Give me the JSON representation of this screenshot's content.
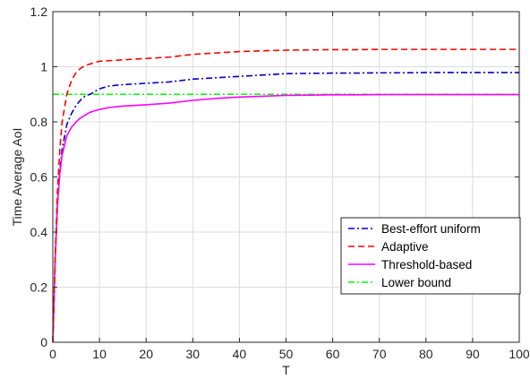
{
  "chart_data": {
    "type": "line",
    "xlabel": "T",
    "ylabel": "Time Average AoI",
    "xlim": [
      0,
      100
    ],
    "ylim": [
      0,
      1.2
    ],
    "xticks": [
      0,
      10,
      20,
      30,
      40,
      50,
      60,
      70,
      80,
      90,
      100
    ],
    "yticks": [
      0,
      0.2,
      0.4,
      0.6,
      0.8,
      1,
      1.2
    ],
    "xtick_labels": [
      "0",
      "10",
      "20",
      "30",
      "40",
      "50",
      "60",
      "70",
      "80",
      "90",
      "100"
    ],
    "ytick_labels": [
      "0",
      "0.2",
      "0.4",
      "0.6",
      "0.8",
      "1",
      "1.2"
    ],
    "grid": true,
    "legend_position": "center-right",
    "series": [
      {
        "name": "Best-effort uniform",
        "color": "#0000cc",
        "dash": "dash-dot",
        "x": [
          0,
          0.5,
          1,
          1.5,
          2,
          3,
          4,
          5,
          6,
          7,
          8,
          10,
          12,
          15,
          20,
          25,
          30,
          35,
          40,
          45,
          50,
          55,
          60,
          65,
          70,
          75,
          80,
          85,
          90,
          95,
          100
        ],
        "y": [
          0,
          0.3,
          0.5,
          0.62,
          0.7,
          0.79,
          0.83,
          0.86,
          0.88,
          0.895,
          0.9,
          0.92,
          0.93,
          0.935,
          0.94,
          0.945,
          0.955,
          0.96,
          0.965,
          0.97,
          0.975,
          0.976,
          0.977,
          0.977,
          0.978,
          0.978,
          0.979,
          0.979,
          0.979,
          0.979,
          0.979
        ]
      },
      {
        "name": "Adaptive",
        "color": "#ff0000",
        "dash": "dashed",
        "x": [
          0,
          0.5,
          1,
          1.5,
          2,
          3,
          4,
          5,
          6,
          7,
          8,
          10,
          12,
          15,
          20,
          25,
          30,
          35,
          40,
          45,
          50,
          55,
          60,
          65,
          70,
          75,
          80,
          85,
          90,
          95,
          100
        ],
        "y": [
          0,
          0.3,
          0.55,
          0.7,
          0.8,
          0.9,
          0.95,
          0.98,
          0.995,
          1.005,
          1.01,
          1.02,
          1.022,
          1.025,
          1.03,
          1.035,
          1.045,
          1.05,
          1.055,
          1.058,
          1.06,
          1.061,
          1.062,
          1.062,
          1.063,
          1.063,
          1.063,
          1.063,
          1.063,
          1.063,
          1.063
        ]
      },
      {
        "name": "Threshold-based",
        "color": "#ff00ff",
        "dash": "solid",
        "x": [
          0,
          0.5,
          1,
          1.5,
          2,
          3,
          4,
          5,
          6,
          7,
          8,
          10,
          12,
          15,
          20,
          25,
          30,
          35,
          40,
          45,
          50,
          55,
          60,
          65,
          70,
          75,
          80,
          85,
          90,
          95,
          100
        ],
        "y": [
          0,
          0.3,
          0.5,
          0.61,
          0.68,
          0.75,
          0.78,
          0.8,
          0.815,
          0.825,
          0.835,
          0.845,
          0.852,
          0.857,
          0.862,
          0.868,
          0.878,
          0.885,
          0.89,
          0.893,
          0.896,
          0.897,
          0.898,
          0.898,
          0.899,
          0.899,
          0.899,
          0.899,
          0.899,
          0.899,
          0.899
        ]
      },
      {
        "name": "Lower bound",
        "color": "#00ff00",
        "dash": "dash-dot",
        "x": [
          0,
          100
        ],
        "y": [
          0.9,
          0.9
        ]
      }
    ]
  }
}
